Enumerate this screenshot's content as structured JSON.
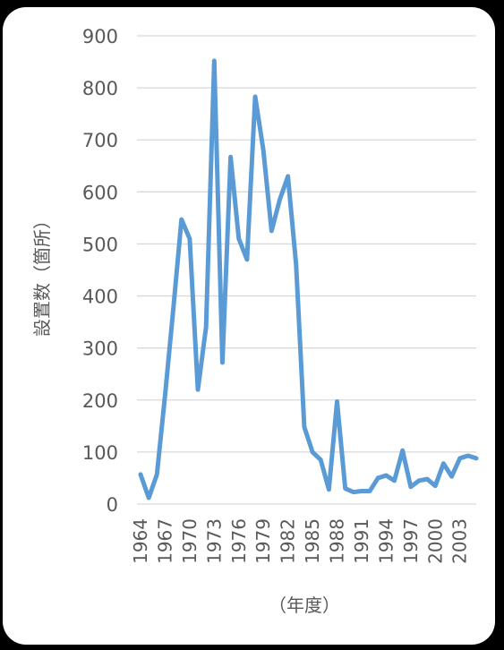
{
  "chart_data": {
    "type": "line",
    "xlabel": "（年度）",
    "ylabel": "設置数（箇所）",
    "ylim": [
      0,
      900
    ],
    "yticks": [
      0,
      100,
      200,
      300,
      400,
      500,
      600,
      700,
      800,
      900
    ],
    "xtick_labels": [
      "1964",
      "1967",
      "1970",
      "1973",
      "1976",
      "1979",
      "1982",
      "1985",
      "1988",
      "1991",
      "1994",
      "1997",
      "2000",
      "2003"
    ],
    "grid": true,
    "line_color": "#5B9BD5",
    "x": [
      1964,
      1965,
      1966,
      1967,
      1968,
      1969,
      1970,
      1971,
      1972,
      1973,
      1974,
      1975,
      1976,
      1977,
      1978,
      1979,
      1980,
      1981,
      1982,
      1983,
      1984,
      1985,
      1986,
      1987,
      1988,
      1989,
      1990,
      1991,
      1992,
      1993,
      1994,
      1995,
      1996,
      1997,
      1998,
      1999,
      2000,
      2001,
      2002,
      2003,
      2004,
      2005
    ],
    "series": [
      {
        "values": [
          57,
          12,
          57,
          210,
          375,
          547,
          510,
          220,
          340,
          852,
          272,
          667,
          510,
          470,
          783,
          680,
          525,
          585,
          630,
          460,
          148,
          100,
          85,
          28,
          197,
          30,
          23,
          25,
          25,
          50,
          55,
          45,
          103,
          33,
          45,
          48,
          35,
          78,
          53,
          88,
          93,
          88
        ]
      }
    ]
  }
}
